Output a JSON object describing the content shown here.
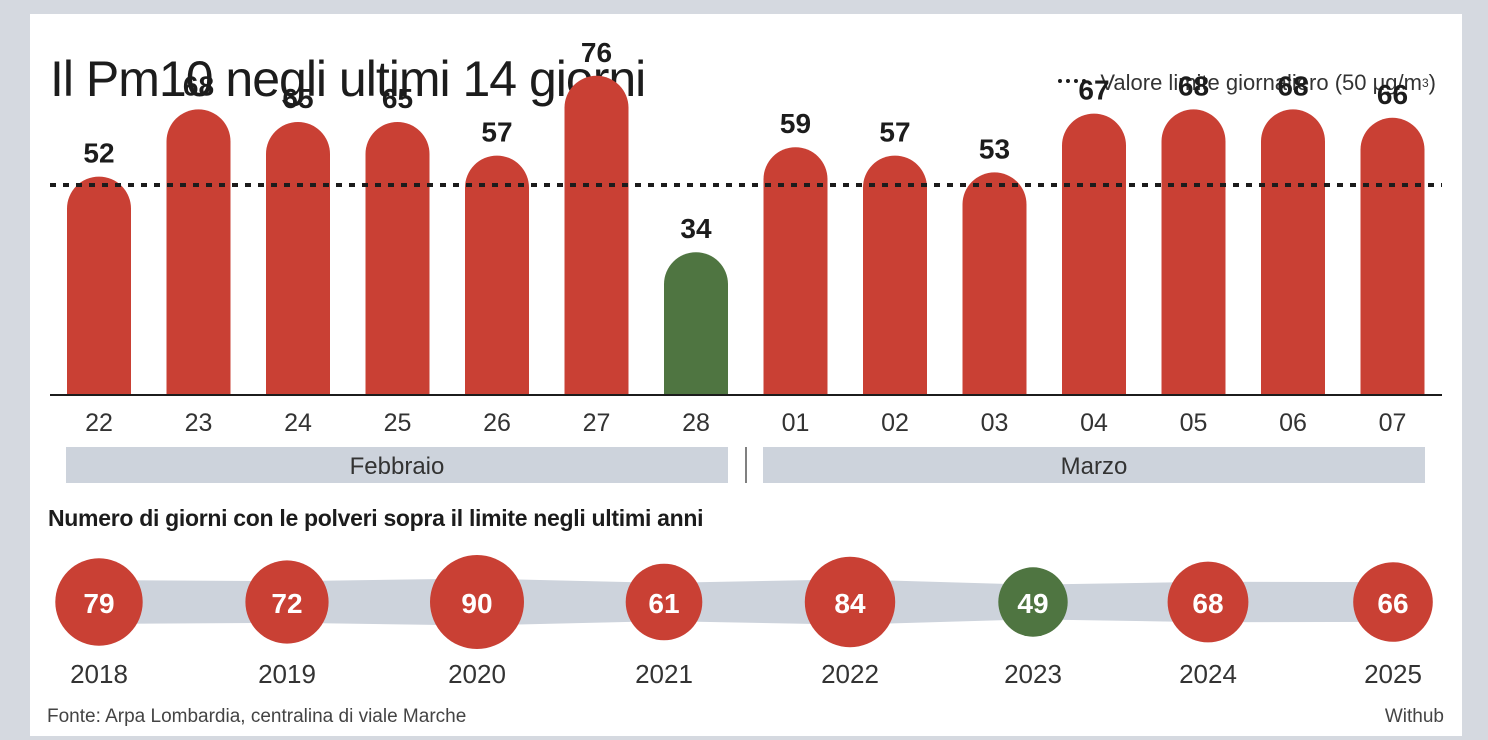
{
  "title": "Il Pm10 negli ultimi 14 giorni",
  "legend": {
    "label": "Valore limite giornaliero (50 μg/m",
    "sup": "3",
    "close": ")"
  },
  "months": [
    {
      "label": "Febbraio"
    },
    {
      "label": "Marzo"
    }
  ],
  "section2_title": "Numero di giorni con le polveri sopra il limite negli ultimi anni",
  "source": "Fonte: Arpa Lombardia, centralina di viale Marche",
  "credit": "Withub",
  "colors": {
    "over": "#c94034",
    "under": "#4f7541",
    "band": "#cdd3dc",
    "axis": "#1c1c1c"
  },
  "chart_data": [
    {
      "type": "bar",
      "title": "Il Pm10 negli ultimi 14 giorni",
      "categories": [
        "22",
        "23",
        "24",
        "25",
        "26",
        "27",
        "28",
        "01",
        "02",
        "03",
        "04",
        "05",
        "06",
        "07"
      ],
      "values": [
        52,
        68,
        65,
        65,
        57,
        76,
        34,
        59,
        57,
        53,
        67,
        68,
        68,
        66
      ],
      "reference_line": {
        "value": 50,
        "label": "Valore limite giornaliero (50 μg/m3)"
      },
      "groups": [
        {
          "label": "Febbraio",
          "categories": [
            "22",
            "23",
            "24",
            "25",
            "26",
            "27",
            "28"
          ]
        },
        {
          "label": "Marzo",
          "categories": [
            "01",
            "02",
            "03",
            "04",
            "05",
            "06",
            "07"
          ]
        }
      ],
      "ylim": [
        0,
        80
      ],
      "grid": false,
      "legend": "top-right"
    },
    {
      "type": "scatter",
      "title": "Numero di giorni con le polveri sopra il limite negli ultimi anni",
      "categories": [
        "2018",
        "2019",
        "2020",
        "2021",
        "2022",
        "2023",
        "2024",
        "2025"
      ],
      "values": [
        79,
        72,
        90,
        61,
        84,
        49,
        68,
        66
      ]
    }
  ]
}
